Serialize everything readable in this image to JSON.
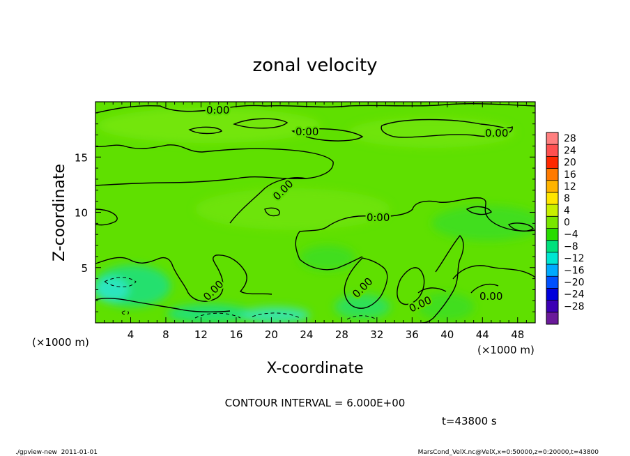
{
  "chart_data": {
    "type": "heatmap",
    "title": "zonal velocity",
    "xlabel": "X-coordinate",
    "ylabel": "Z-coordinate",
    "x_unit": "(×1000 m)",
    "y_unit": "(×1000 m)",
    "xlim": [
      0,
      50
    ],
    "ylim": [
      0,
      20
    ],
    "x_ticks": [
      4,
      8,
      12,
      16,
      20,
      24,
      28,
      32,
      36,
      40,
      44,
      48
    ],
    "y_ticks": [
      5,
      10,
      15
    ],
    "contour_interval_text": "CONTOUR INTERVAL = 6.000E+00",
    "contour_labels": [
      "0.00",
      "0.00",
      "0.00",
      "0.00",
      "0.00",
      "0.00",
      "0.00",
      "0.00",
      "0.00",
      "0.00"
    ],
    "colorbar": {
      "levels": [
        28,
        24,
        20,
        16,
        12,
        8,
        4,
        0,
        -4,
        -8,
        -12,
        -16,
        -20,
        -24,
        -28
      ],
      "colors": [
        "#ff7f7f",
        "#ff5050",
        "#ff2800",
        "#ff7a00",
        "#ffb400",
        "#ffe600",
        "#c8f000",
        "#78e600",
        "#28dc00",
        "#00e07c",
        "#00e6d2",
        "#00aaff",
        "#0050ff",
        "#0000dc",
        "#3c00b4",
        "#6a1a9a"
      ]
    },
    "time_text": "t=43800 s"
  },
  "footer": {
    "left": "./gpview-new  2011-01-01",
    "right": "MarsCond_VelX.nc@VelX,x=0:50000,z=0:20000,t=43800"
  },
  "colors": {
    "field_base": "#5fe000",
    "field_light": "#7ce816",
    "field_teal": "#1fe07a",
    "field_cyan": "#2ee6c8"
  }
}
